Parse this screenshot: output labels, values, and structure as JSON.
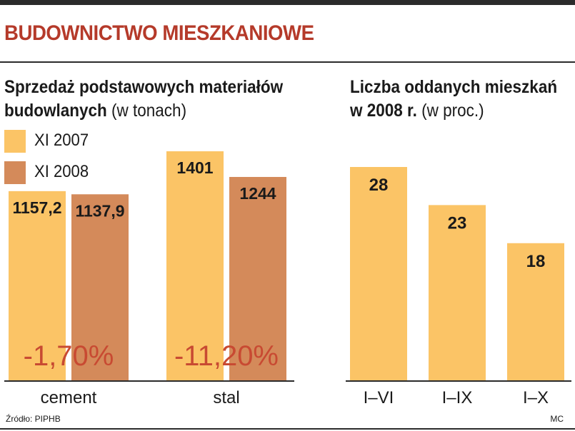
{
  "header": {
    "title": "BUDOWNICTWO MIESZKANIOWE"
  },
  "colors": {
    "series_2007": "#fbc466",
    "series_2008": "#d48a5a",
    "title_red": "#b53a2a",
    "change_text": "#c84a32"
  },
  "chart_data": [
    {
      "type": "bar",
      "title": "Sprzedaż podstawowych materiałów",
      "title_line2": "budowlanych",
      "unit": "(w tonach)",
      "categories": [
        "cement",
        "stal"
      ],
      "series": [
        {
          "name": "XI 2007",
          "values": [
            1157.2,
            1401
          ],
          "labels": [
            "1157,2",
            "1401"
          ]
        },
        {
          "name": "XI 2008",
          "values": [
            1137.9,
            1244
          ],
          "labels": [
            "1137,9",
            "1244"
          ]
        }
      ],
      "changes": [
        "-1,70%",
        "-11,20%"
      ],
      "ylim": [
        0,
        1401
      ],
      "legend": "top-left",
      "grid": false
    },
    {
      "type": "bar",
      "title": "Liczba oddanych mieszkań",
      "title_line2": "w 2008 r.",
      "unit": "(w proc.)",
      "categories": [
        "I–VI",
        "I–IX",
        "I–X"
      ],
      "values": [
        28,
        23,
        18
      ],
      "labels": [
        "28",
        "23",
        "18"
      ],
      "ylim": [
        0,
        28
      ],
      "grid": false
    }
  ],
  "footer": {
    "source": "Źródło: PIPHB",
    "author": "MC"
  }
}
